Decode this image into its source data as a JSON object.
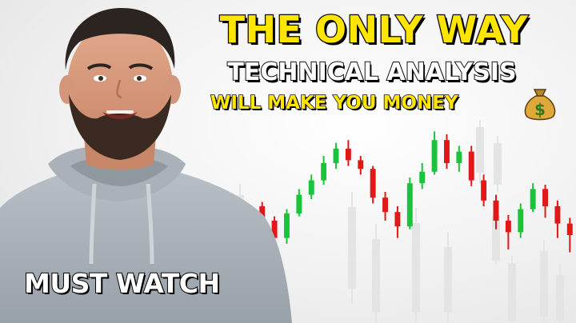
{
  "thumbnail": {
    "headline": "THE ONLY WAY",
    "subline": "TECHNICAL ANALYSIS",
    "tagline": "WILL MAKE YOU MONEY",
    "badge": "MUST WATCH",
    "money_icon": "money-bag-icon",
    "colors": {
      "headline": "#ffe500",
      "subline": "#ffffff",
      "bull_candle": "#19c43a",
      "bear_candle": "#e01818",
      "outline": "#111111"
    }
  },
  "chart_data": {
    "type": "candlestick",
    "candles": [
      {
        "o": 40,
        "c": 30,
        "h": 43,
        "l": 28
      },
      {
        "o": 30,
        "c": 18,
        "h": 33,
        "l": 15
      },
      {
        "o": 18,
        "c": 35,
        "h": 38,
        "l": 14
      },
      {
        "o": 35,
        "c": 48,
        "h": 52,
        "l": 33
      },
      {
        "o": 48,
        "c": 58,
        "h": 62,
        "l": 45
      },
      {
        "o": 58,
        "c": 70,
        "h": 75,
        "l": 55
      },
      {
        "o": 70,
        "c": 80,
        "h": 84,
        "l": 66
      },
      {
        "o": 80,
        "c": 72,
        "h": 86,
        "l": 68
      },
      {
        "o": 72,
        "c": 66,
        "h": 75,
        "l": 62
      },
      {
        "o": 66,
        "c": 46,
        "h": 68,
        "l": 42
      },
      {
        "o": 46,
        "c": 36,
        "h": 50,
        "l": 30
      },
      {
        "o": 36,
        "c": 26,
        "h": 40,
        "l": 18
      },
      {
        "o": 26,
        "c": 56,
        "h": 60,
        "l": 24
      },
      {
        "o": 56,
        "c": 64,
        "h": 70,
        "l": 52
      },
      {
        "o": 64,
        "c": 86,
        "h": 92,
        "l": 62
      },
      {
        "o": 86,
        "c": 70,
        "h": 90,
        "l": 66
      },
      {
        "o": 70,
        "c": 78,
        "h": 82,
        "l": 64
      },
      {
        "o": 78,
        "c": 58,
        "h": 82,
        "l": 54
      },
      {
        "o": 58,
        "c": 44,
        "h": 62,
        "l": 40
      },
      {
        "o": 44,
        "c": 30,
        "h": 48,
        "l": 24
      },
      {
        "o": 30,
        "c": 22,
        "h": 34,
        "l": 10
      },
      {
        "o": 22,
        "c": 38,
        "h": 42,
        "l": 18
      },
      {
        "o": 38,
        "c": 52,
        "h": 56,
        "l": 36
      },
      {
        "o": 52,
        "c": 40,
        "h": 55,
        "l": 32
      },
      {
        "o": 40,
        "c": 28,
        "h": 44,
        "l": 18
      },
      {
        "o": 28,
        "c": 20,
        "h": 32,
        "l": 8
      }
    ],
    "ylim": [
      0,
      100
    ],
    "grid": false
  }
}
